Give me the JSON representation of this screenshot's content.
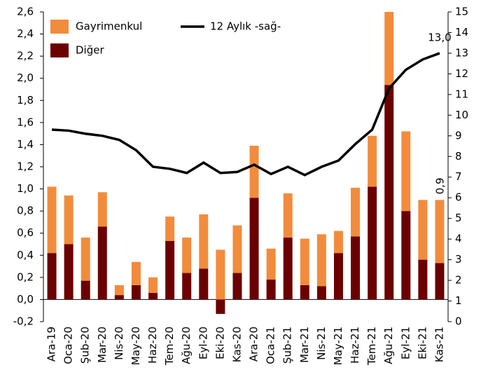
{
  "chart_data": {
    "type": "bar-line",
    "categories": [
      "Ara-19",
      "Oca-20",
      "Şub-20",
      "Mar-20",
      "Nis-20",
      "May-20",
      "Haz-20",
      "Tem-20",
      "Ağu-20",
      "Eyl-20",
      "Eki-20",
      "Kas-20",
      "Ara-20",
      "Oca-21",
      "Şub-21",
      "Mar-21",
      "Nis-21",
      "May-21",
      "Haz-21",
      "Tem-21",
      "Ağu-21",
      "Eyl-21",
      "Eki-21",
      "Kas-21"
    ],
    "series": [
      {
        "name": "Diğer",
        "color": "#6b0000",
        "type": "bar",
        "values": [
          0.42,
          0.5,
          0.17,
          0.66,
          0.04,
          0.13,
          0.06,
          0.53,
          0.24,
          0.28,
          -0.13,
          0.24,
          0.92,
          0.18,
          0.56,
          0.13,
          0.12,
          0.42,
          0.57,
          1.02,
          1.94,
          0.8,
          0.36,
          0.33
        ]
      },
      {
        "name": "Gayrimenkul",
        "color": "#f28c3c",
        "type": "bar",
        "values": [
          0.6,
          0.44,
          0.39,
          0.31,
          0.09,
          0.21,
          0.14,
          0.22,
          0.32,
          0.49,
          0.45,
          0.43,
          0.47,
          0.28,
          0.4,
          0.42,
          0.47,
          0.2,
          0.44,
          0.46,
          0.66,
          0.72,
          0.54,
          0.57
        ]
      },
      {
        "name": "12 Aylık -sağ-",
        "color": "#000000",
        "type": "line",
        "axis": "y2",
        "values": [
          9.3,
          9.25,
          9.1,
          9.0,
          8.8,
          8.3,
          7.5,
          7.4,
          7.2,
          7.7,
          7.2,
          7.25,
          7.6,
          7.15,
          7.5,
          7.1,
          7.5,
          7.8,
          8.6,
          9.3,
          11.3,
          12.2,
          12.7,
          13.0
        ],
        "value_labels": [
          null,
          null,
          null,
          null,
          null,
          null,
          null,
          null,
          null,
          null,
          null,
          null,
          null,
          null,
          null,
          null,
          null,
          null,
          null,
          null,
          null,
          null,
          null,
          "13,0"
        ]
      }
    ],
    "annotations": [
      "0,9"
    ],
    "ylim": [
      -0.2,
      2.6
    ],
    "yticks": [
      {
        "value": -0.2,
        "label": "-0,2"
      },
      {
        "value": 0,
        "label": "0,0"
      },
      {
        "value": 0.2,
        "label": "0,2"
      },
      {
        "value": 0.4,
        "label": "0,4"
      },
      {
        "value": 0.6,
        "label": "0,6"
      },
      {
        "value": 0.8,
        "label": "0,8"
      },
      {
        "value": 1.0,
        "label": "1,0"
      },
      {
        "value": 1.2,
        "label": "1,2"
      },
      {
        "value": 1.4,
        "label": "1,4"
      },
      {
        "value": 1.6,
        "label": "1,6"
      },
      {
        "value": 1.8,
        "label": "1,8"
      },
      {
        "value": 2.0,
        "label": "2,0"
      },
      {
        "value": 2.2,
        "label": "2,2"
      },
      {
        "value": 2.4,
        "label": "2,4"
      },
      {
        "value": 2.6,
        "label": "2,6"
      }
    ],
    "y2lim": [
      0,
      15
    ],
    "y2ticks": [
      0,
      1,
      2,
      3,
      4,
      5,
      6,
      7,
      8,
      9,
      10,
      11,
      12,
      13,
      14,
      15
    ],
    "legend": "top-left"
  }
}
